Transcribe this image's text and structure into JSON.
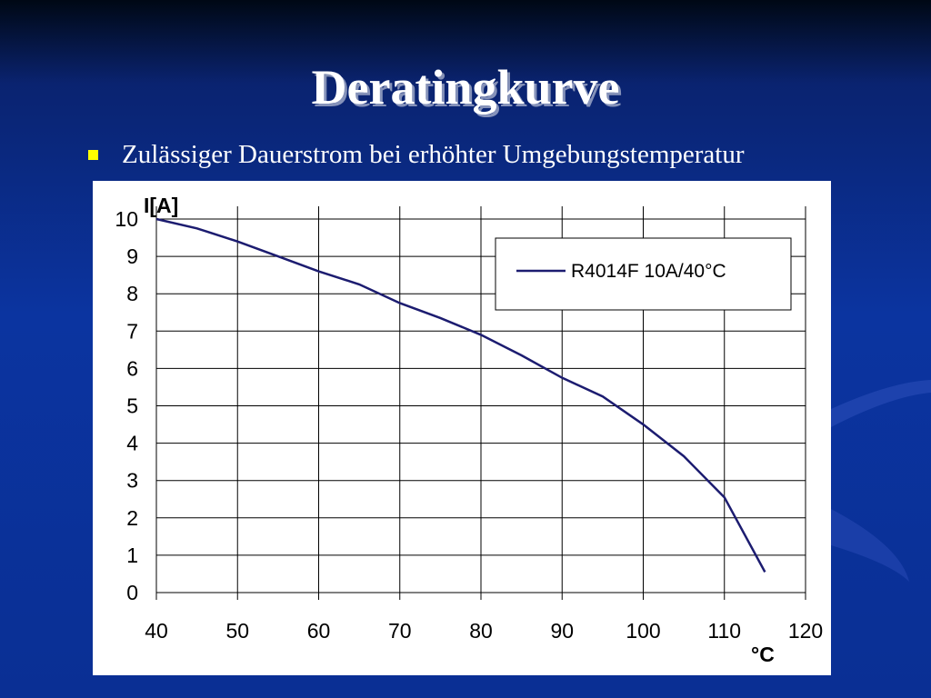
{
  "title": "Deratingkurve",
  "bullet": "Zulässiger Dauerstrom bei erhöhter Umgebungstemperatur",
  "chart_data": {
    "type": "line",
    "ylabel": "I[A]",
    "xlabel": "°C",
    "x": [
      40,
      45,
      50,
      55,
      60,
      65,
      70,
      75,
      80,
      85,
      90,
      95,
      100,
      105,
      110,
      115
    ],
    "series": [
      {
        "name": "R4014F 10A/40°C",
        "color": "#1c1c70",
        "values": [
          10,
          9.75,
          9.4,
          9.0,
          8.6,
          8.25,
          7.75,
          7.35,
          6.9,
          6.35,
          5.75,
          5.25,
          4.5,
          3.65,
          2.55,
          0.55
        ]
      }
    ],
    "xlim": [
      40,
      120
    ],
    "xticks": [
      40,
      50,
      60,
      70,
      80,
      90,
      100,
      110,
      120
    ],
    "ylim": [
      0,
      10
    ],
    "yticks": [
      0,
      1,
      2,
      3,
      4,
      5,
      6,
      7,
      8,
      9,
      10
    ],
    "grid": true,
    "legend": "upper right"
  }
}
